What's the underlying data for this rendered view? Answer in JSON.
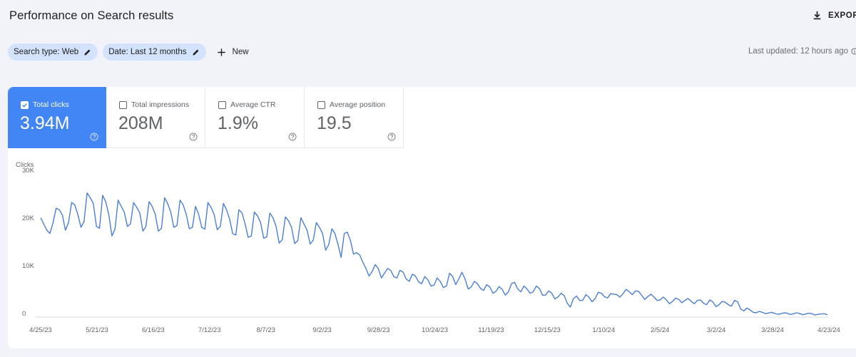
{
  "header": {
    "title": "Performance on Search results",
    "export_label": "EXPORT"
  },
  "filters": {
    "search_type": "Search type: Web",
    "date": "Date: Last 12 months",
    "new_label": "New",
    "last_updated": "Last updated: 12 hours ago"
  },
  "metrics": [
    {
      "label": "Total clicks",
      "value": "3.94M",
      "checked": true
    },
    {
      "label": "Total impressions",
      "value": "208M",
      "checked": false
    },
    {
      "label": "Average CTR",
      "value": "1.9%",
      "checked": false
    },
    {
      "label": "Average position",
      "value": "19.5",
      "checked": false
    }
  ],
  "colors": {
    "accent": "#4285f4",
    "chip_bg": "#d3e3fd",
    "line": "#4a7fd4",
    "background": "#f1f3f9"
  },
  "icons": {
    "export": "download-icon",
    "edit": "pencil-icon",
    "add": "plus-icon",
    "help": "help-circle-icon",
    "info": "info-icon",
    "checkbox": "checkbox-icon"
  },
  "chart_data": {
    "type": "line",
    "title": "",
    "ylabel": "Clicks",
    "xlabel": "",
    "ylim": [
      0,
      30000
    ],
    "y_ticks": [
      {
        "value": 0,
        "label": "0"
      },
      {
        "value": 10000,
        "label": "10K"
      },
      {
        "value": 20000,
        "label": "20K"
      },
      {
        "value": 30000,
        "label": "30K"
      }
    ],
    "x_ticks": [
      "4/25/23",
      "5/21/23",
      "6/16/23",
      "7/12/23",
      "8/7/23",
      "9/2/23",
      "9/28/23",
      "10/24/23",
      "11/19/23",
      "12/15/23",
      "1/10/24",
      "2/5/24",
      "3/2/24",
      "3/28/24",
      "4/23/24"
    ],
    "series": [
      {
        "values": [
          20800,
          19500,
          18200,
          17500,
          19800,
          22800,
          22500,
          21400,
          18200,
          19800,
          24000,
          23500,
          21500,
          18800,
          20000,
          26000,
          25000,
          23800,
          19000,
          18600,
          25500,
          24200,
          21500,
          17000,
          18400,
          24500,
          23200,
          22000,
          19000,
          19500,
          24000,
          23000,
          21800,
          18000,
          19000,
          24200,
          23200,
          21500,
          18000,
          18600,
          25000,
          23800,
          22000,
          18800,
          19200,
          24500,
          23500,
          21500,
          18500,
          18800,
          23200,
          21500,
          18800,
          18400,
          24000,
          23000,
          21500,
          18300,
          19000,
          23800,
          22500,
          20500,
          17500,
          17200,
          22500,
          21800,
          19500,
          16700,
          17000,
          22000,
          21200,
          19800,
          16500,
          16800,
          21800,
          20800,
          19000,
          15500,
          16200,
          21000,
          20200,
          18800,
          15400,
          16000,
          20800,
          19500,
          18200,
          15300,
          16100,
          19800,
          18800,
          17500,
          14000,
          15200,
          18500,
          17500,
          15200,
          12500,
          17500,
          17800,
          16000,
          13200,
          13500,
          13000,
          11500,
          10200,
          8600,
          9500,
          11000,
          10200,
          8200,
          9200,
          10200,
          9800,
          8500,
          8200,
          9800,
          9400,
          8000,
          7500,
          9000,
          8600,
          7400,
          7000,
          8500,
          7800,
          6500,
          6700,
          8200,
          7500,
          6200,
          6500,
          9200,
          8500,
          6800,
          8000,
          9400,
          8000,
          5900,
          6300,
          7500,
          7000,
          6000,
          5600,
          6800,
          6300,
          5000,
          5400,
          6400,
          5800,
          4600,
          5300,
          7000,
          7300,
          5900,
          5300,
          6500,
          5900,
          5000,
          5300,
          6500,
          6000,
          4600,
          4600,
          5500,
          5000,
          3800,
          4200,
          5000,
          4500,
          2900,
          2100,
          3900,
          4400,
          3500,
          3500,
          4700,
          4200,
          3200,
          3900,
          5200,
          5000,
          4300,
          4000,
          4900,
          4800,
          4700,
          4200,
          4900,
          5800,
          5300,
          4700,
          5500,
          5400,
          4600,
          3700,
          4300,
          4800,
          4200,
          3500,
          3600,
          4200,
          3600,
          2800,
          3300,
          4000,
          3700,
          3000,
          3500,
          3900,
          3300,
          2800,
          3500,
          3600,
          2900,
          2600,
          3600,
          3200,
          2200,
          2600,
          3300,
          3100,
          2600,
          2300,
          3500,
          3200,
          1700,
          1300,
          1900,
          1500,
          1000,
          900,
          1200,
          1000,
          700,
          850,
          1000,
          750,
          600,
          700,
          900,
          800,
          550,
          700,
          900,
          750,
          500,
          650,
          800,
          700,
          450,
          600,
          650,
          700,
          500
        ]
      }
    ]
  }
}
